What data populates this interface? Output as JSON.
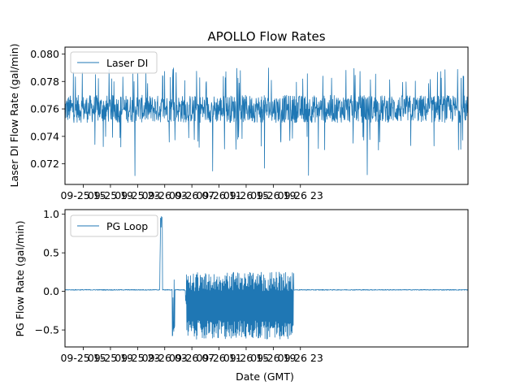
{
  "chart_data": {
    "type": "line",
    "title": "APOLLO Flow Rates",
    "xlabel": "Date (GMT)",
    "x_range_hours": [
      12.3,
      71.7
    ],
    "x_ticks": [
      {
        "hour": 15,
        "label": "09-25 15"
      },
      {
        "hour": 19,
        "label": "09-25 19"
      },
      {
        "hour": 23,
        "label": "09-25 23"
      },
      {
        "hour": 27,
        "label": "09-26 03"
      },
      {
        "hour": 31,
        "label": "09-26 07"
      },
      {
        "hour": 35,
        "label": "09-26 11"
      },
      {
        "hour": 39,
        "label": "09-26 15"
      },
      {
        "hour": 43,
        "label": "09-26 19"
      },
      {
        "hour": 47,
        "label": "09-26 23"
      }
    ],
    "line_color": "#1f77b4",
    "panels": [
      {
        "id": "laser",
        "ylabel": "Laser DI Flow Rate (gal/min)",
        "legend": "Laser DI",
        "ylim": [
          0.0705,
          0.0805
        ],
        "y_ticks": [
          {
            "value": 0.072,
            "label": "0.072"
          },
          {
            "value": 0.074,
            "label": "0.074"
          },
          {
            "value": 0.076,
            "label": "0.076"
          },
          {
            "value": 0.078,
            "label": "0.078"
          },
          {
            "value": 0.08,
            "label": "0.080"
          }
        ],
        "series_summary": {
          "baseline_band": [
            0.075,
            0.077
          ],
          "spike_min": 0.071,
          "spike_max": 0.079
        }
      },
      {
        "id": "pg",
        "ylabel": "PG Flow Rate (gal/min)",
        "legend": "PG Loop",
        "ylim": [
          -0.72,
          1.06
        ],
        "y_ticks": [
          {
            "value": -0.5,
            "label": "−0.5"
          },
          {
            "value": 0.0,
            "label": "0.0"
          },
          {
            "value": 0.5,
            "label": "0.5"
          },
          {
            "value": 1.0,
            "label": "1.0"
          }
        ],
        "series_summary": {
          "baseline": 0.02,
          "peak": 0.98,
          "peak_hour": 26.5,
          "oscillation_hours": [
            30.2,
            46.0
          ],
          "oscillation_range": [
            -0.62,
            0.25
          ]
        }
      }
    ]
  }
}
